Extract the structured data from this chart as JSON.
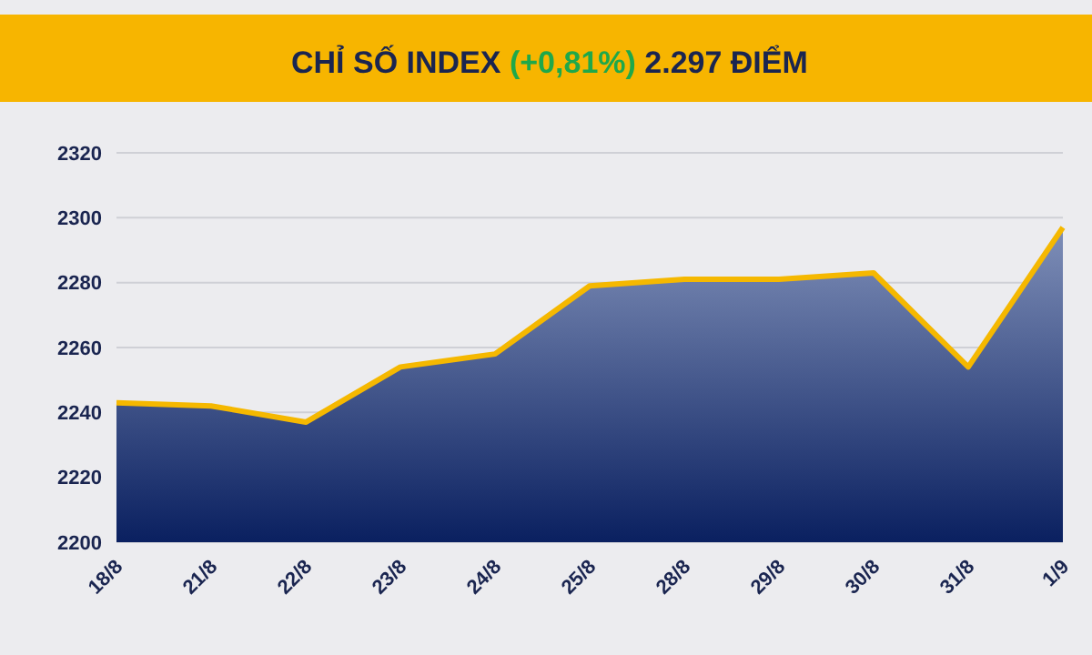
{
  "chart_data": {
    "type": "area",
    "title": "CHỈ SỐ INDEX (+0,81%) 2.297 ĐIỂM",
    "categories": [
      "18/8",
      "21/8",
      "22/8",
      "23/8",
      "24/8",
      "25/8",
      "28/8",
      "29/8",
      "30/8",
      "31/8",
      "1/9"
    ],
    "series": [
      {
        "color": "#f5b800",
        "values": [
          2243,
          2242,
          2237,
          2254,
          2258,
          2279,
          2281,
          2281,
          2283,
          2254,
          2297
        ]
      }
    ],
    "ylim": [
      2200,
      2320
    ],
    "yticks": [
      2200,
      2220,
      2240,
      2260,
      2280,
      2300,
      2320
    ],
    "grid": "y"
  }
}
